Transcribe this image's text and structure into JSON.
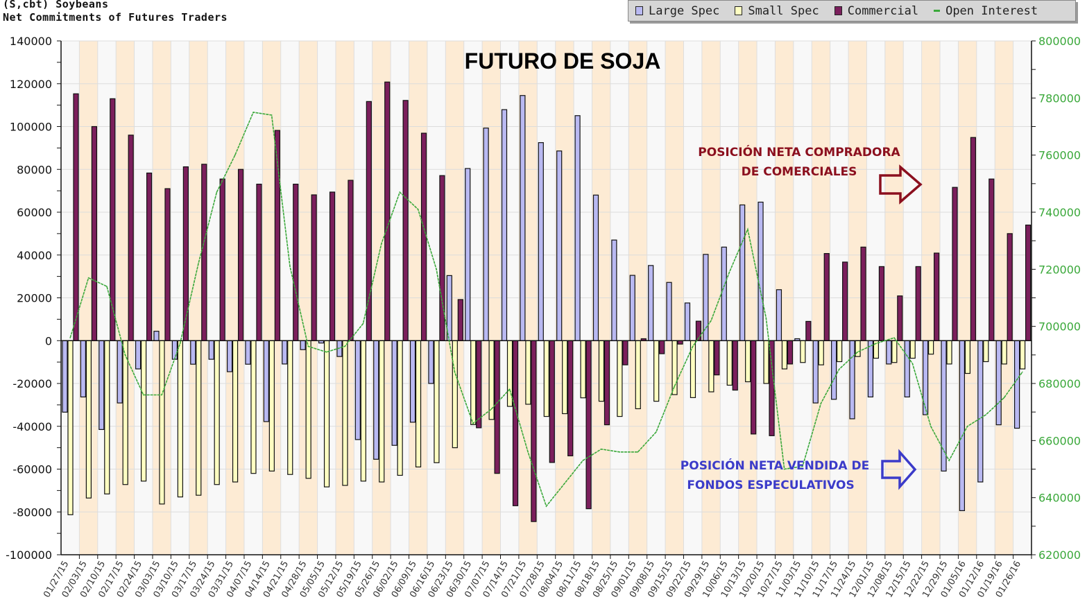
{
  "header": {
    "line1": "(S,cbt) Soybeans",
    "line2": "Net Commitments of Futures Traders"
  },
  "legend": [
    {
      "label": "Large Spec",
      "color": "#b9b9f2"
    },
    {
      "label": "Small Spec",
      "color": "#ffffc2"
    },
    {
      "label": "Commercial",
      "color": "#7b1f5c"
    },
    {
      "label": "Open Interest",
      "color": "#3aa83a"
    }
  ],
  "annotations": {
    "title": "FUTURO DE SOJA",
    "commercial_line1": "POSICIÓN NETA COMPRADORA",
    "commercial_line2": "DE COMERCIALES",
    "funds_line1": "POSICIÓN NETA VENDIDA DE",
    "funds_line2": "FONDOS ESPECULATIVOS",
    "commercial_color": "#8b0f1e",
    "funds_color": "#3b3bc9"
  },
  "chart_data": {
    "type": "bar",
    "title": "Net Commitments of Futures Traders",
    "subtitle": "(S,cbt) Soybeans",
    "categories": [
      "01/27/15",
      "02/03/15",
      "02/10/15",
      "02/17/15",
      "02/24/15",
      "03/03/15",
      "03/10/15",
      "03/17/15",
      "03/24/15",
      "03/31/15",
      "04/07/15",
      "04/14/15",
      "04/21/15",
      "04/28/15",
      "05/05/15",
      "05/12/15",
      "05/19/15",
      "05/26/15",
      "06/02/15",
      "06/09/15",
      "06/16/15",
      "06/23/15",
      "06/30/15",
      "07/07/15",
      "07/14/15",
      "07/21/15",
      "07/28/15",
      "08/04/15",
      "08/11/15",
      "08/18/15",
      "08/25/15",
      "09/01/15",
      "09/08/15",
      "09/15/15",
      "09/22/15",
      "09/29/15",
      "10/06/15",
      "10/13/15",
      "10/20/15",
      "10/27/15",
      "11/03/15",
      "11/10/15",
      "11/17/15",
      "11/24/15",
      "12/01/15",
      "12/08/15",
      "12/15/15",
      "12/22/15",
      "12/29/15",
      "01/05/16",
      "01/12/16",
      "01/19/16",
      "01/26/16"
    ],
    "series": [
      {
        "name": "Large Spec",
        "axis": "left",
        "values": [
          -33400,
          -26300,
          -41500,
          -29100,
          -13200,
          4400,
          -8700,
          -11000,
          -8700,
          -14500,
          -11000,
          -37800,
          -10900,
          -4200,
          -1100,
          -7400,
          -46200,
          -55400,
          -48900,
          -38100,
          -20000,
          30400,
          80400,
          99300,
          107900,
          114500,
          92500,
          88600,
          105100,
          68000,
          47000,
          30500,
          35100,
          27200,
          17600,
          40300,
          43700,
          63400,
          64700,
          23800,
          900,
          -29100,
          -27400,
          -36500,
          -26300,
          -10900,
          -26300,
          -34600,
          -60900,
          -79400,
          -66000,
          -39300,
          -40900
        ]
      },
      {
        "name": "Small Spec",
        "axis": "left",
        "values": [
          -81300,
          -73500,
          -71600,
          -67200,
          -65600,
          -76300,
          -73000,
          -72200,
          -67200,
          -66000,
          -62000,
          -60900,
          -62500,
          -64300,
          -68300,
          -67600,
          -65600,
          -66000,
          -62900,
          -59000,
          -57000,
          -50000,
          -39200,
          -36800,
          -30700,
          -29700,
          -35400,
          -34100,
          -26700,
          -28300,
          -35400,
          -31800,
          -28300,
          -25200,
          -26600,
          -23900,
          -20800,
          -19200,
          -20000,
          -13200,
          -10200,
          -11300,
          -9800,
          -7400,
          -8200,
          -10200,
          -8200,
          -6300,
          -10900,
          -15300,
          -9800,
          -10900,
          -13200
        ]
      },
      {
        "name": "Commercial",
        "axis": "left",
        "values": [
          115300,
          100000,
          113000,
          96000,
          78300,
          71000,
          81200,
          82400,
          75500,
          80000,
          73100,
          98200,
          73100,
          68100,
          69400,
          74900,
          111700,
          120800,
          112200,
          96900,
          77100,
          19200,
          -40700,
          -62000,
          -77100,
          -84500,
          -56900,
          -53800,
          -78500,
          -39300,
          -11300,
          900,
          -6100,
          -1600,
          9100,
          -16000,
          -23100,
          -43600,
          -44400,
          -10900,
          9000,
          40700,
          36700,
          43700,
          34600,
          20900,
          34600,
          40900,
          71600,
          94900,
          75500,
          50000,
          54000
        ]
      },
      {
        "name": "Open Interest",
        "axis": "right",
        "type": "line",
        "values": [
          696000,
          717000,
          714000,
          690000,
          676000,
          676000,
          694000,
          722000,
          747000,
          760000,
          775000,
          774000,
          721000,
          693000,
          691000,
          693000,
          701000,
          729000,
          747000,
          741000,
          720000,
          684000,
          666000,
          671000,
          678000,
          656000,
          637000,
          645000,
          653000,
          657000,
          656000,
          656000,
          663000,
          679000,
          693000,
          702000,
          719000,
          734000,
          703000,
          650000,
          651000,
          673000,
          685000,
          691000,
          694000,
          696000,
          687000,
          665000,
          653000,
          665000,
          669000,
          675000,
          684000
        ]
      }
    ],
    "y_left": {
      "min": -100000,
      "max": 140000,
      "step": 20000,
      "ticks": [
        "140000",
        "120000",
        "100000",
        "80000",
        "60000",
        "40000",
        "20000",
        "0",
        "-20000",
        "-40000",
        "-60000",
        "-80000",
        "-100000"
      ]
    },
    "y_right": {
      "min": 620000,
      "max": 800000,
      "step": 20000,
      "ticks": [
        "800000",
        "780000",
        "760000",
        "740000",
        "720000",
        "700000",
        "680000",
        "660000",
        "640000",
        "620000"
      ]
    },
    "grid": true,
    "legend_position": "top-right"
  }
}
